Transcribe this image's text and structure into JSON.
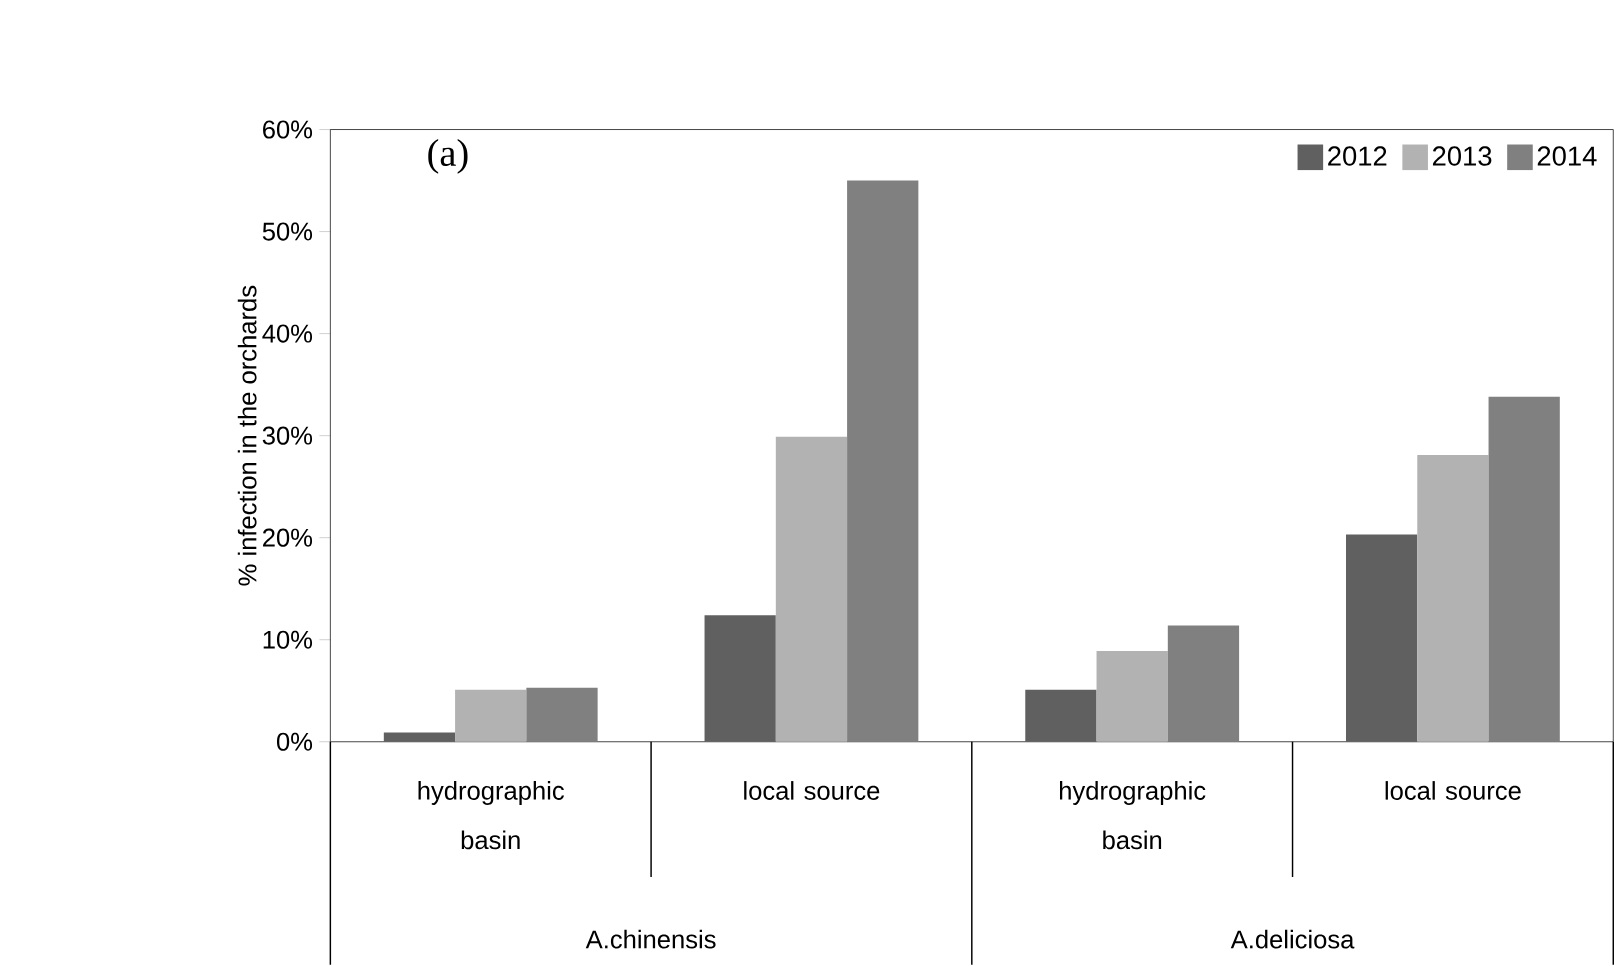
{
  "chart_data": {
    "type": "bar",
    "title": "(a)",
    "ylabel": "% infection in the orchards",
    "categories": [
      "hydrographic basin",
      "local source",
      "hydrographic basin",
      "local source"
    ],
    "series": [
      {
        "name": "2012",
        "color": "#606060",
        "values": [
          0.9,
          12.4,
          5.1,
          20.3
        ]
      },
      {
        "name": "2013",
        "color": "#b2b2b2",
        "values": [
          5.1,
          29.9,
          8.9,
          28.1
        ]
      },
      {
        "name": "2014",
        "color": "#808080",
        "values": [
          5.3,
          55.0,
          11.4,
          33.8
        ]
      }
    ],
    "ylim": [
      0,
      60
    ],
    "yticks": [
      {
        "value": 0,
        "label": "0%"
      },
      {
        "value": 10,
        "label": "10%"
      },
      {
        "value": 20,
        "label": "20%"
      },
      {
        "value": 30,
        "label": "30%"
      },
      {
        "value": 40,
        "label": "40%"
      },
      {
        "value": 50,
        "label": "50%"
      },
      {
        "value": 60,
        "label": "60%"
      }
    ],
    "annotations": [
      "A.chinensis",
      "A.deliciosa"
    ],
    "legend": "top right",
    "grid": false
  }
}
